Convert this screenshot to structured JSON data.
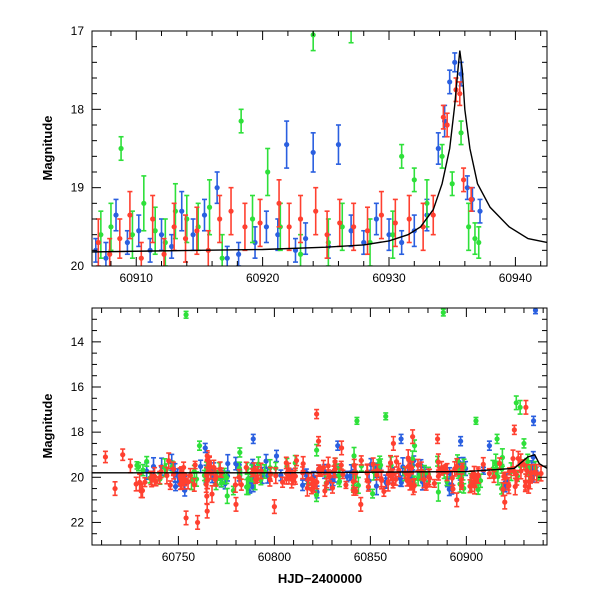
{
  "chart_data": [
    {
      "type": "scatter",
      "panel": "top",
      "title": "",
      "xlabel": "",
      "ylabel": "Magnitude",
      "xlim": [
        60906.5,
        60942.5
      ],
      "ylim": [
        20,
        17
      ],
      "y_inverted": true,
      "grid": false,
      "xticks": [
        60910,
        60920,
        60930,
        60940
      ],
      "yticks": [
        17,
        18,
        19,
        20
      ],
      "xtick_labels": [
        "60910",
        "60920",
        "60930",
        "60940"
      ],
      "ytick_labels": [
        "17",
        "18",
        "19",
        "20"
      ],
      "model_curve": {
        "color": "#000000",
        "baseline": 19.8,
        "peak_x": 60935.6,
        "peak_mag": 17.25,
        "points": [
          [
            60906.5,
            19.82
          ],
          [
            60915,
            19.8
          ],
          [
            60920,
            19.79
          ],
          [
            60925,
            19.76
          ],
          [
            60928,
            19.73
          ],
          [
            60930,
            19.68
          ],
          [
            60931.5,
            19.6
          ],
          [
            60932.5,
            19.5
          ],
          [
            60933.5,
            19.28
          ],
          [
            60934.2,
            18.95
          ],
          [
            60934.8,
            18.5
          ],
          [
            60935.2,
            17.95
          ],
          [
            60935.45,
            17.5
          ],
          [
            60935.6,
            17.25
          ],
          [
            60935.8,
            17.5
          ],
          [
            60936.0,
            18.0
          ],
          [
            60936.4,
            18.5
          ],
          [
            60937.0,
            18.95
          ],
          [
            60938.0,
            19.25
          ],
          [
            60939.5,
            19.5
          ],
          [
            60941.0,
            19.65
          ],
          [
            60942.5,
            19.7
          ]
        ]
      },
      "series": [
        {
          "color": "#2a5fe0",
          "points": [
            [
              60906.8,
              19.8,
              0.15
            ],
            [
              60907.6,
              19.9,
              0.2
            ],
            [
              60908.4,
              19.35,
              0.2
            ],
            [
              60909.3,
              19.7,
              0.15
            ],
            [
              60910.2,
              19.55,
              0.2
            ],
            [
              60911.1,
              19.8,
              0.15
            ],
            [
              60912.0,
              19.6,
              0.2
            ],
            [
              60912.8,
              19.75,
              0.15
            ],
            [
              60913.6,
              19.3,
              0.25
            ],
            [
              60914.5,
              19.6,
              0.2
            ],
            [
              60915.4,
              19.35,
              0.2
            ],
            [
              60916.4,
              19.0,
              0.2
            ],
            [
              60917.2,
              19.9,
              0.15
            ],
            [
              60918.1,
              19.85,
              0.15
            ],
            [
              60919.4,
              19.7,
              0.2
            ],
            [
              60920.3,
              19.5,
              0.2
            ],
            [
              60921.2,
              19.6,
              0.2
            ],
            [
              60921.9,
              18.45,
              0.3
            ],
            [
              60922.6,
              19.8,
              0.15
            ],
            [
              60923.4,
              19.65,
              0.2
            ],
            [
              60924.0,
              18.55,
              0.25
            ],
            [
              60925.2,
              19.75,
              0.15
            ],
            [
              60926.0,
              18.45,
              0.25
            ],
            [
              60927.0,
              19.55,
              0.2
            ],
            [
              60928.0,
              19.7,
              0.15
            ],
            [
              60929.0,
              19.4,
              0.2
            ],
            [
              60930.0,
              19.6,
              0.2
            ],
            [
              60931.0,
              19.7,
              0.15
            ],
            [
              60932.0,
              19.55,
              0.2
            ],
            [
              60933.0,
              19.35,
              0.2
            ],
            [
              60933.9,
              18.5,
              0.2
            ],
            [
              60934.4,
              18.15,
              0.2
            ],
            [
              60934.8,
              17.65,
              0.15
            ],
            [
              60935.2,
              17.4,
              0.12
            ],
            [
              60935.7,
              17.55,
              0.15
            ],
            [
              60936.2,
              19.0,
              0.15
            ],
            [
              60936.6,
              19.15,
              0.15
            ],
            [
              60937.2,
              19.3,
              0.15
            ]
          ]
        },
        {
          "color": "#2ee03a",
          "points": [
            [
              60907.2,
              19.6,
              0.3
            ],
            [
              60908.0,
              19.5,
              0.3
            ],
            [
              60908.8,
              18.5,
              0.15
            ],
            [
              60909.7,
              19.6,
              0.3
            ],
            [
              60910.6,
              19.2,
              0.35
            ],
            [
              60911.5,
              19.55,
              0.3
            ],
            [
              60912.3,
              19.7,
              0.3
            ],
            [
              60913.1,
              19.3,
              0.35
            ],
            [
              60914.0,
              19.4,
              0.3
            ],
            [
              60914.9,
              19.5,
              0.3
            ],
            [
              60915.8,
              19.25,
              0.35
            ],
            [
              60916.8,
              19.9,
              0.3
            ],
            [
              60918.3,
              18.15,
              0.15
            ],
            [
              60919.2,
              19.4,
              0.3
            ],
            [
              60920.4,
              18.8,
              0.3
            ],
            [
              60921.4,
              19.5,
              0.3
            ],
            [
              60923.0,
              19.85,
              0.25
            ],
            [
              60924.0,
              17.05,
              0.2
            ],
            [
              60925.2,
              19.7,
              0.3
            ],
            [
              60926.3,
              19.5,
              0.3
            ],
            [
              60927.0,
              16.95,
              0.2
            ],
            [
              60928.5,
              19.7,
              0.3
            ],
            [
              60930.3,
              19.6,
              0.3
            ],
            [
              60931.0,
              18.6,
              0.15
            ],
            [
              60932.0,
              18.9,
              0.15
            ],
            [
              60933.0,
              19.2,
              0.3
            ],
            [
              60934.2,
              18.6,
              0.15
            ],
            [
              60935.0,
              18.95,
              0.15
            ],
            [
              60935.7,
              18.3,
              0.15
            ],
            [
              60936.3,
              19.5,
              0.3
            ],
            [
              60936.8,
              19.65,
              0.2
            ],
            [
              60937.1,
              19.7,
              0.2
            ]
          ]
        },
        {
          "color": "#ff4030",
          "points": [
            [
              60907.0,
              19.7,
              0.3
            ],
            [
              60907.9,
              19.85,
              0.2
            ],
            [
              60908.7,
              19.65,
              0.25
            ],
            [
              60909.5,
              19.35,
              0.3
            ],
            [
              60910.4,
              19.9,
              0.2
            ],
            [
              60911.3,
              19.4,
              0.3
            ],
            [
              60912.2,
              19.85,
              0.2
            ],
            [
              60913.0,
              19.5,
              0.3
            ],
            [
              60913.9,
              19.65,
              0.3
            ],
            [
              60914.8,
              19.55,
              0.3
            ],
            [
              60915.7,
              19.8,
              0.25
            ],
            [
              60916.6,
              19.4,
              0.3
            ],
            [
              60917.5,
              19.3,
              0.3
            ],
            [
              60918.6,
              19.5,
              0.3
            ],
            [
              60919.8,
              19.45,
              0.3
            ],
            [
              60921.3,
              19.2,
              0.3
            ],
            [
              60922.1,
              19.5,
              0.3
            ],
            [
              60923.0,
              19.4,
              0.3
            ],
            [
              60924.2,
              19.3,
              0.3
            ],
            [
              60925.1,
              19.6,
              0.3
            ],
            [
              60926.1,
              19.45,
              0.3
            ],
            [
              60927.2,
              19.5,
              0.3
            ],
            [
              60928.3,
              19.55,
              0.3
            ],
            [
              60929.4,
              19.35,
              0.3
            ],
            [
              60930.5,
              19.45,
              0.3
            ],
            [
              60931.6,
              19.4,
              0.3
            ],
            [
              60932.7,
              19.5,
              0.3
            ],
            [
              60933.5,
              19.35,
              0.25
            ],
            [
              60934.3,
              18.1,
              0.15
            ],
            [
              60934.6,
              18.2,
              0.15
            ],
            [
              60935.3,
              17.75,
              0.15
            ],
            [
              60935.6,
              17.8,
              0.15
            ],
            [
              60935.9,
              18.9,
              0.15
            ],
            [
              60936.5,
              19.15,
              0.15
            ]
          ]
        }
      ]
    },
    {
      "type": "scatter",
      "panel": "bottom",
      "title": "",
      "xlabel": "HJD−2400000",
      "ylabel": "Magnitude",
      "xlim": [
        60705,
        60942
      ],
      "ylim": [
        23,
        12.5
      ],
      "y_inverted": true,
      "grid": false,
      "xticks": [
        60750,
        60800,
        60850,
        60900
      ],
      "yticks": [
        14,
        16,
        18,
        20,
        22
      ],
      "xtick_labels": [
        "60750",
        "60800",
        "60850",
        "60900"
      ],
      "ytick_labels": [
        "14",
        "16",
        "18",
        "20",
        "22"
      ],
      "baseline_curve": {
        "color": "#000000",
        "points": [
          [
            60705,
            19.8
          ],
          [
            60800,
            19.8
          ],
          [
            60900,
            19.75
          ],
          [
            60925,
            19.6
          ],
          [
            60932,
            19.1
          ],
          [
            60935.6,
            19.0
          ],
          [
            60938,
            19.4
          ],
          [
            60942,
            19.6
          ]
        ]
      },
      "outliers": [
        {
          "color": "#2ee03a",
          "points": [
            [
              60754,
              12.8,
              0.15
            ],
            [
              60888,
              12.7,
              0.15
            ],
            [
              60761,
              18.6,
              0.2
            ],
            [
              60782,
              18.9,
              0.2
            ],
            [
              60822,
              18.8,
              0.25
            ],
            [
              60843,
              17.5,
              0.15
            ],
            [
              60858,
              17.3,
              0.15
            ],
            [
              60873,
              18.6,
              0.25
            ],
            [
              60905,
              17.5,
              0.15
            ],
            [
              60926,
              16.7,
              0.3
            ],
            [
              60928,
              16.9,
              0.3
            ],
            [
              60930,
              18.5,
              0.2
            ],
            [
              60916,
              18.3,
              0.2
            ]
          ]
        },
        {
          "color": "#2a5fe0",
          "points": [
            [
              60936,
              12.6,
              0.15
            ],
            [
              60764,
              18.7,
              0.2
            ],
            [
              60789,
              18.3,
              0.2
            ],
            [
              60833,
              18.6,
              0.2
            ],
            [
              60866,
              18.3,
              0.2
            ],
            [
              60897,
              18.4,
              0.2
            ],
            [
              60912,
              18.6,
              0.2
            ],
            [
              60935,
              17.5,
              0.2
            ]
          ]
        },
        {
          "color": "#ff4030",
          "points": [
            [
              60712,
              19.1,
              0.25
            ],
            [
              60717,
              20.5,
              0.3
            ],
            [
              60721,
              19.0,
              0.25
            ],
            [
              60725,
              19.5,
              0.3
            ],
            [
              60728,
              20.3,
              0.3
            ],
            [
              60754,
              21.8,
              0.3
            ],
            [
              60760,
              22.0,
              0.3
            ],
            [
              60765,
              21.5,
              0.3
            ],
            [
              60780,
              21.2,
              0.3
            ],
            [
              60800,
              21.3,
              0.3
            ],
            [
              60822,
              17.2,
              0.2
            ],
            [
              60823,
              18.4,
              0.2
            ],
            [
              60835,
              18.7,
              0.3
            ],
            [
              60845,
              21.2,
              0.3
            ],
            [
              60862,
              18.5,
              0.3
            ],
            [
              60872,
              18.2,
              0.3
            ],
            [
              60885,
              18.3,
              0.2
            ],
            [
              60895,
              21.0,
              0.3
            ],
            [
              60920,
              21.1,
              0.3
            ],
            [
              60925,
              17.9,
              0.2
            ],
            [
              60931,
              16.9,
              0.3
            ]
          ]
        }
      ],
      "bulk": {
        "x_start": 60728,
        "x_end": 60940,
        "count_per_series": 95,
        "mean_mag": 19.9,
        "scatter_mag": 0.35,
        "series": [
          {
            "color": "#2a5fe0",
            "weight": 1
          },
          {
            "color": "#2ee03a",
            "weight": 1
          },
          {
            "color": "#ff4030",
            "weight": 2
          }
        ]
      }
    }
  ]
}
